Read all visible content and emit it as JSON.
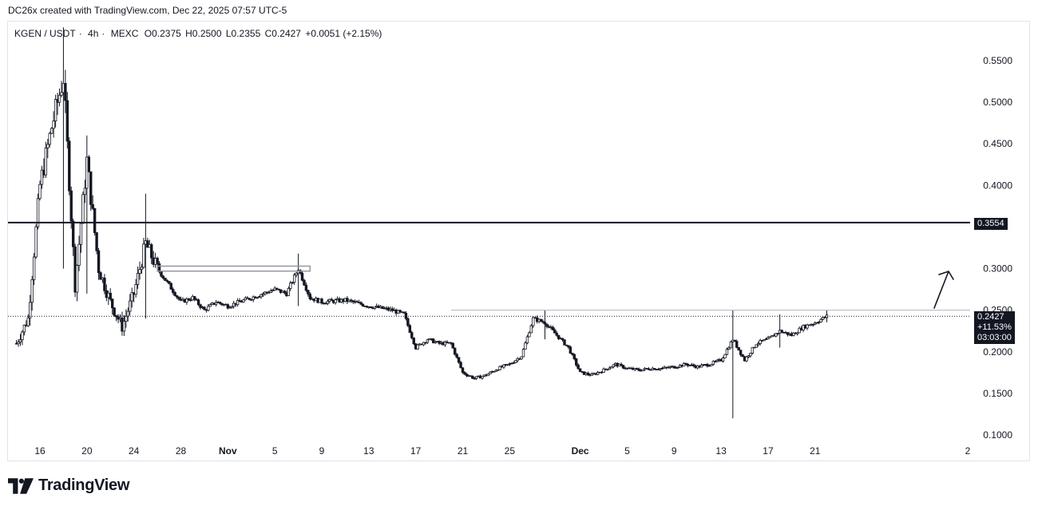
{
  "caption": "DC26x created with TradingView.com, Dec 22, 2025 07:57 UTC-5",
  "symbol": {
    "pair": "KGEN / USDT",
    "interval": "4h",
    "exchange": "MEXC",
    "open": "O0.2375",
    "high": "H0.2500",
    "low": "L0.2355",
    "close": "C0.2427",
    "change": "+0.0051 (+2.15%)"
  },
  "brand": "TradingView",
  "price_tags": {
    "level": "0.3554",
    "current_price": "0.2427",
    "current_change": "+11.53%",
    "countdown": "03:03:00"
  },
  "colors": {
    "candle": "#131722",
    "background": "#ffffff",
    "grid_frame": "#e0e3eb",
    "tag_bg": "#131722"
  },
  "chart_data": {
    "type": "candlestick",
    "title": "KGEN / USDT · 4h · MEXC",
    "ylim": [
      0.09,
      0.59
    ],
    "y_ticks": [
      "0.5500",
      "0.5000",
      "0.4500",
      "0.4000",
      "0.3000",
      "0.2500",
      "0.2000",
      "0.1500",
      "0.1000"
    ],
    "y_tick_values": [
      0.55,
      0.5,
      0.45,
      0.4,
      0.3,
      0.25,
      0.2,
      0.15,
      0.1
    ],
    "x_ticks": [
      "16",
      "20",
      "24",
      "28",
      "Nov",
      "5",
      "9",
      "13",
      "17",
      "21",
      "25",
      "Dec",
      "5",
      "9",
      "13",
      "17",
      "21",
      "2"
    ],
    "x_tick_bold": [
      "Nov",
      "Dec"
    ],
    "x_range_days": [
      "Oct 14",
      "Jan 2"
    ],
    "horizontal_line": 0.3554,
    "current_price_line": 0.2427,
    "resistance_box": [
      0.297,
      0.303
    ],
    "resistance_line": 0.25,
    "price_path": [
      [
        "Oct 14",
        0.21
      ],
      [
        "Oct 15",
        0.24
      ],
      [
        "Oct 16",
        0.4
      ],
      [
        "Oct 17",
        0.47
      ],
      [
        "Oct 18",
        0.53
      ],
      [
        "Oct 19",
        0.28
      ],
      [
        "Oct 20",
        0.43
      ],
      [
        "Oct 21",
        0.3
      ],
      [
        "Oct 22",
        0.26
      ],
      [
        "Oct 23",
        0.23
      ],
      [
        "Oct 24",
        0.27
      ],
      [
        "Oct 25",
        0.33
      ],
      [
        "Oct 26",
        0.3
      ],
      [
        "Oct 27",
        0.28
      ],
      [
        "Oct 28",
        0.26
      ],
      [
        "Oct 29",
        0.265
      ],
      [
        "Oct 30",
        0.25
      ],
      [
        "Oct 31",
        0.26
      ],
      [
        "Nov 1",
        0.255
      ],
      [
        "Nov 3",
        0.265
      ],
      [
        "Nov 5",
        0.275
      ],
      [
        "Nov 6",
        0.27
      ],
      [
        "Nov 7",
        0.3
      ],
      [
        "Nov 8",
        0.265
      ],
      [
        "Nov 9",
        0.26
      ],
      [
        "Nov 11",
        0.262
      ],
      [
        "Nov 13",
        0.255
      ],
      [
        "Nov 15",
        0.25
      ],
      [
        "Nov 16",
        0.245
      ],
      [
        "Nov 17",
        0.205
      ],
      [
        "Nov 18",
        0.215
      ],
      [
        "Nov 19",
        0.21
      ],
      [
        "Nov 20",
        0.21
      ],
      [
        "Nov 21",
        0.175
      ],
      [
        "Nov 22",
        0.168
      ],
      [
        "Nov 23",
        0.172
      ],
      [
        "Nov 24",
        0.18
      ],
      [
        "Nov 25",
        0.185
      ],
      [
        "Nov 26",
        0.195
      ],
      [
        "Nov 27",
        0.24
      ],
      [
        "Nov 28",
        0.235
      ],
      [
        "Nov 29",
        0.22
      ],
      [
        "Nov 30",
        0.205
      ],
      [
        "Dec 1",
        0.175
      ],
      [
        "Dec 2",
        0.172
      ],
      [
        "Dec 3",
        0.178
      ],
      [
        "Dec 4",
        0.185
      ],
      [
        "Dec 5",
        0.18
      ],
      [
        "Dec 6",
        0.178
      ],
      [
        "Dec 7",
        0.18
      ],
      [
        "Dec 8",
        0.18
      ],
      [
        "Dec 9",
        0.182
      ],
      [
        "Dec 10",
        0.185
      ],
      [
        "Dec 11",
        0.182
      ],
      [
        "Dec 12",
        0.185
      ],
      [
        "Dec 13",
        0.19
      ],
      [
        "Dec 14",
        0.215
      ],
      [
        "Dec 15",
        0.19
      ],
      [
        "Dec 16",
        0.21
      ],
      [
        "Dec 17",
        0.215
      ],
      [
        "Dec 18",
        0.225
      ],
      [
        "Dec 19",
        0.22
      ],
      [
        "Dec 20",
        0.23
      ],
      [
        "Dec 21",
        0.235
      ],
      [
        "Dec 22",
        0.2427
      ]
    ],
    "spikes": [
      {
        "date": "Oct 18",
        "high": 0.59,
        "low": 0.3
      },
      {
        "date": "Oct 20",
        "high": 0.46,
        "low": 0.27
      },
      {
        "date": "Oct 25",
        "high": 0.39,
        "low": 0.24
      },
      {
        "date": "Nov 7",
        "high": 0.318,
        "low": 0.255
      },
      {
        "date": "Nov 28",
        "high": 0.25,
        "low": 0.215
      },
      {
        "date": "Dec 14",
        "high": 0.25,
        "low": 0.12
      },
      {
        "date": "Dec 18",
        "high": 0.245,
        "low": 0.205
      },
      {
        "date": "Dec 22",
        "high": 0.25,
        "low": 0.2355
      }
    ]
  }
}
